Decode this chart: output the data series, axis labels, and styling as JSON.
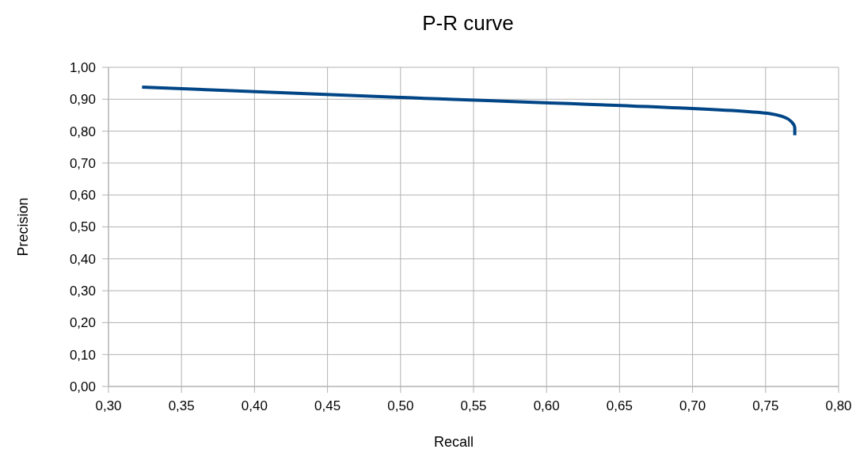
{
  "chart_data": {
    "type": "line",
    "title": "P-R curve",
    "xlabel": "Recall",
    "ylabel": "Precision",
    "x": [
      0.323,
      0.5,
      0.753,
      0.762,
      0.768,
      0.77,
      0.77
    ],
    "series": [
      {
        "color": "#004586",
        "values": [
          0.938,
          0.906,
          0.855,
          0.845,
          0.828,
          0.81,
          0.787
        ]
      }
    ],
    "xlim": [
      0.3,
      0.8
    ],
    "xticks": [
      {
        "value": 0.3,
        "label": "0,30"
      },
      {
        "value": 0.35,
        "label": "0,35"
      },
      {
        "value": 0.4,
        "label": "0,40"
      },
      {
        "value": 0.45,
        "label": "0,45"
      },
      {
        "value": 0.5,
        "label": "0,50"
      },
      {
        "value": 0.55,
        "label": "0,55"
      },
      {
        "value": 0.6,
        "label": "0,60"
      },
      {
        "value": 0.65,
        "label": "0,65"
      },
      {
        "value": 0.7,
        "label": "0,70"
      },
      {
        "value": 0.75,
        "label": "0,75"
      },
      {
        "value": 0.8,
        "label": "0,80"
      }
    ],
    "ylim": [
      0,
      1
    ],
    "yticks": [
      {
        "value": 0,
        "label": "0,00"
      },
      {
        "value": 0.1,
        "label": "0,10"
      },
      {
        "value": 0.2,
        "label": "0,20"
      },
      {
        "value": 0.3,
        "label": "0,30"
      },
      {
        "value": 0.4,
        "label": "0,40"
      },
      {
        "value": 0.5,
        "label": "0,50"
      },
      {
        "value": 0.6,
        "label": "0,60"
      },
      {
        "value": 0.7,
        "label": "0,70"
      },
      {
        "value": 0.8,
        "label": "0,80"
      },
      {
        "value": 0.9,
        "label": "0,90"
      },
      {
        "value": 1,
        "label": "1,00"
      }
    ],
    "grid": true,
    "marker": "none",
    "line_style": "solid"
  }
}
